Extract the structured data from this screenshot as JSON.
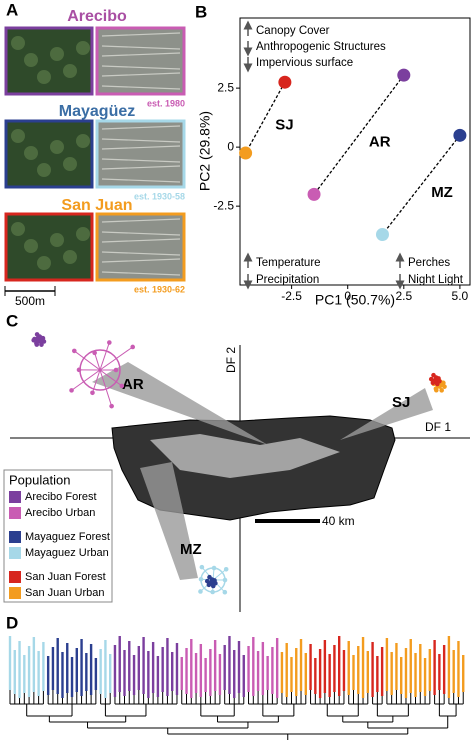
{
  "panel_a": {
    "label": "A",
    "scale_bar": "500m",
    "sites": [
      {
        "name": "Arecibo",
        "color": "#a94fa3",
        "established": "est. 1980",
        "forest_border": "#7b3f9e",
        "urban_border": "#c95cb3"
      },
      {
        "name": "Mayagüez",
        "color": "#3b6ea5",
        "established": "est. 1930-58",
        "forest_border": "#2b3f8f",
        "urban_border": "#a6d8e8"
      },
      {
        "name": "San Juan",
        "color": "#f39c1f",
        "established": "est. 1930-62",
        "forest_border": "#d7261e",
        "urban_border": "#f39c1f"
      }
    ]
  },
  "chart_data": {
    "type": "scatter",
    "label": "B",
    "xlabel": "PC1 (50.7%)",
    "ylabel": "PC2 (29.8%)",
    "xlim": [
      -4.8,
      5.45
    ],
    "ylim": [
      -5.84,
      5.47
    ],
    "xticks": [
      -2.5,
      0,
      2.5,
      {
        "value": 5,
        "label": "5.0"
      }
    ],
    "yticks": [
      -2.5,
      0,
      2.5
    ],
    "series": [
      {
        "name": "SJ",
        "colors": [
          "#d7261e",
          "#f39c1f"
        ],
        "x": [
          -2.8,
          -4.55
        ],
        "values": [
          2.75,
          -0.25
        ]
      },
      {
        "name": "AR",
        "colors": [
          "#7b3f9e",
          "#c95cb3"
        ],
        "x": [
          2.5,
          -1.5
        ],
        "values": [
          3.05,
          -2.0
        ]
      },
      {
        "name": "MZ",
        "colors": [
          "#2b3f8f",
          "#a6d8e8"
        ],
        "x": [
          5.0,
          1.55
        ],
        "values": [
          0.5,
          -3.7
        ]
      }
    ],
    "annotations": {
      "top_left": [
        "Canopy Cover",
        "Anthropogenic Structures",
        "Impervious surface"
      ],
      "bottom_left": [
        "Temperature",
        "Precipitation"
      ],
      "bottom_right": [
        "Perches",
        "Night Light"
      ]
    }
  },
  "panel_c": {
    "label": "C",
    "x_axis": "DF 1",
    "y_axis": "DF 2",
    "groups": [
      "AR",
      "SJ",
      "MZ"
    ],
    "scale_bar": "40 km",
    "legend": {
      "title": "Population",
      "entries": [
        {
          "name": "Arecibo Forest",
          "color": "#7b3f9e"
        },
        {
          "name": "Arecibo Urban",
          "color": "#c95cb3"
        },
        {
          "name": "Mayaguez Forest",
          "color": "#2b3f8f"
        },
        {
          "name": "Mayaguez Urban",
          "color": "#a6d8e8"
        },
        {
          "name": "San Juan Forest",
          "color": "#d7261e"
        },
        {
          "name": "San Juan Urban",
          "color": "#f39c1f"
        }
      ]
    }
  },
  "panel_d": {
    "label": "D",
    "clades": [
      {
        "color": "#a6d8e8",
        "leaves": 8
      },
      {
        "color": "#2b3f8f",
        "leaves": 11
      },
      {
        "color": "#a6d8e8",
        "leaves": 3
      },
      {
        "color": "#7b3f9e",
        "leaves": 14
      },
      {
        "color": "#c95cb3",
        "leaves": 9
      },
      {
        "color": "#7b3f9e",
        "leaves": 5
      },
      {
        "color": "#c95cb3",
        "leaves": 7
      },
      {
        "color": "#f39c1f",
        "leaves": 6
      },
      {
        "color": "#d7261e",
        "leaves": 8
      },
      {
        "color": "#f39c1f",
        "leaves": 5
      },
      {
        "color": "#d7261e",
        "leaves": 3
      },
      {
        "color": "#f39c1f",
        "leaves": 10
      },
      {
        "color": "#d7261e",
        "leaves": 3
      },
      {
        "color": "#f39c1f",
        "leaves": 4
      }
    ]
  }
}
